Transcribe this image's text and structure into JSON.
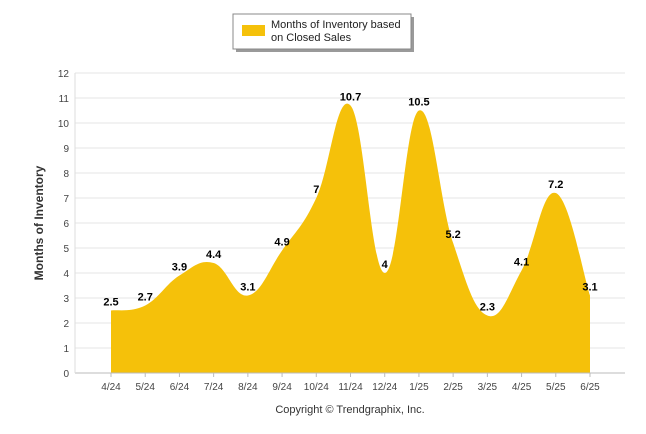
{
  "chart_data": {
    "type": "area",
    "categories": [
      "4/24",
      "5/24",
      "6/24",
      "7/24",
      "8/24",
      "9/24",
      "10/24",
      "11/24",
      "12/24",
      "1/25",
      "2/25",
      "3/25",
      "4/25",
      "5/25",
      "6/25"
    ],
    "series": [
      {
        "name": "Months of Inventory based on Closed Sales",
        "values": [
          2.5,
          2.7,
          3.9,
          4.4,
          3.1,
          4.9,
          7,
          10.7,
          4,
          10.5,
          5.2,
          2.3,
          4.1,
          7.2,
          3.1
        ],
        "color": "#F5C10A"
      }
    ],
    "data_labels": [
      "2.5",
      "2.7",
      "3.9",
      "4.4",
      "3.1",
      "4.9",
      "7",
      "10.7",
      "4",
      "10.5",
      "5.2",
      "2.3",
      "4.1",
      "7.2",
      "3.1"
    ],
    "ylabel": "Months of Inventory",
    "xlabel": "",
    "ylim": [
      0,
      12
    ],
    "yticks": [
      "0",
      "1",
      "2",
      "3",
      "4",
      "5",
      "6",
      "7",
      "8",
      "9",
      "10",
      "11",
      "12"
    ],
    "grid": true,
    "legend_placement": "top-center"
  },
  "legend": {
    "label_line1": "Months of Inventory based",
    "label_line2": "on Closed Sales"
  },
  "footer": {
    "copyright": "Copyright © Trendgraphix, Inc."
  }
}
